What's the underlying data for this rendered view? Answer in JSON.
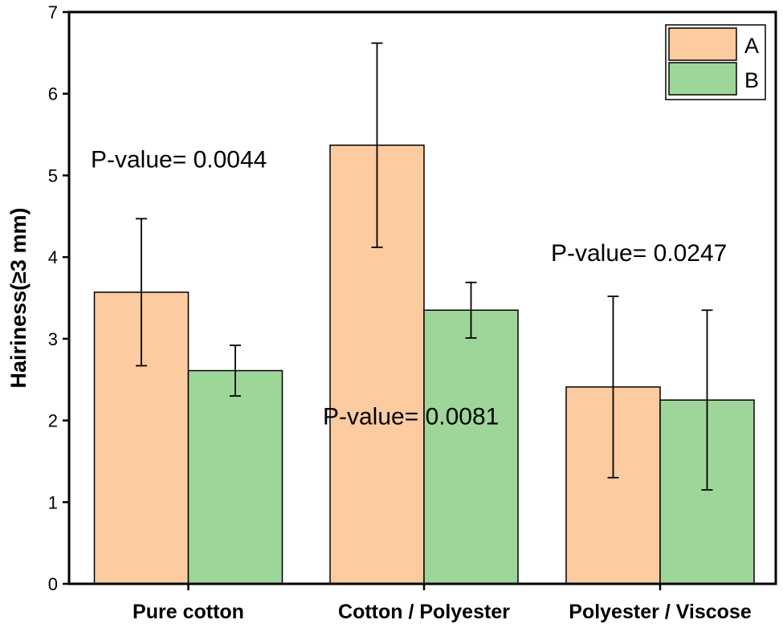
{
  "chart_data": {
    "type": "bar",
    "title": "",
    "xlabel": "",
    "ylabel": "Hairiness(≥3 mm)",
    "ylim": [
      0,
      7
    ],
    "yticks": [
      "0",
      "1",
      "2",
      "3",
      "4",
      "5",
      "6",
      "7"
    ],
    "categories": [
      "Pure cotton",
      "Cotton / Polyester",
      "Polyester / Viscose"
    ],
    "series": [
      {
        "name": "A",
        "color": "#FDCBA0",
        "values": [
          3.57,
          5.37,
          2.41
        ],
        "errors": [
          0.9,
          1.25,
          1.11
        ]
      },
      {
        "name": "B",
        "color": "#9ED69A",
        "values": [
          2.61,
          3.35,
          2.25
        ],
        "errors": [
          0.31,
          0.34,
          1.1
        ]
      }
    ],
    "annotations": [
      {
        "text": "P-value= 0.0044",
        "category": 0,
        "y": 5.1
      },
      {
        "text": "P-value= 0.0081",
        "category": 1,
        "y": 1.95
      },
      {
        "text": "P-value= 0.0247",
        "category": 2,
        "y": 3.95
      }
    ],
    "legend_position": "top-right",
    "grid": false
  }
}
